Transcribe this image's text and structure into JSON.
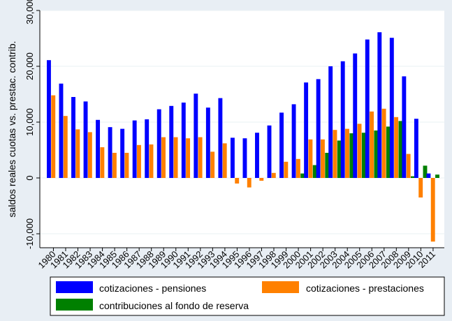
{
  "chart_data": {
    "type": "bar",
    "title": "",
    "xlabel": "",
    "ylabel": "saldos reales cuotas vs. prestac. contrib.",
    "ylim": [
      -12500,
      30000
    ],
    "yticks": [
      -10000,
      0,
      10000,
      20000,
      30000
    ],
    "ytick_labels": [
      "-10,000",
      "0",
      "10,000",
      "20,000",
      "30,000"
    ],
    "grid": true,
    "legend_position": "bottom",
    "categories": [
      "1980",
      "1981",
      "1982",
      "1983",
      "1984",
      "1985",
      "1986",
      "1987",
      "1988",
      "1989",
      "1990",
      "1991",
      "1992",
      "1993",
      "1994",
      "1995",
      "1996",
      "1997",
      "1998",
      "1999",
      "2000",
      "2001",
      "2002",
      "2003",
      "2004",
      "2005",
      "2006",
      "2007",
      "2008",
      "2009",
      "2010",
      "2011"
    ],
    "series": [
      {
        "name": "cotizaciones - pensiones",
        "color": "#0000ff",
        "values": [
          21100,
          16900,
          14500,
          13700,
          10400,
          9100,
          8800,
          10300,
          10500,
          12300,
          12900,
          13500,
          15100,
          12600,
          14300,
          7200,
          7100,
          8100,
          9400,
          11700,
          13200,
          17100,
          17700,
          20000,
          20900,
          22300,
          24800,
          26100,
          25100,
          18200,
          10600,
          800
        ]
      },
      {
        "name": "cotizaciones - prestaciones",
        "color": "#ff8000",
        "values": [
          14800,
          11100,
          8700,
          8200,
          5500,
          4500,
          4500,
          5900,
          6000,
          7300,
          7300,
          7100,
          7300,
          4700,
          6200,
          -1000,
          -1700,
          -500,
          900,
          2900,
          3400,
          6900,
          6900,
          8600,
          8800,
          9700,
          11900,
          12400,
          10900,
          4300,
          -3500,
          -11400
        ]
      },
      {
        "name": "contribuciones al fondo de reserva",
        "color": "#008000",
        "values": [
          0,
          0,
          0,
          0,
          0,
          0,
          0,
          0,
          0,
          0,
          0,
          0,
          0,
          0,
          0,
          0,
          0,
          0,
          0,
          0,
          800,
          2300,
          4500,
          6700,
          8000,
          8100,
          8500,
          9200,
          10200,
          300,
          2200,
          600
        ]
      }
    ]
  }
}
